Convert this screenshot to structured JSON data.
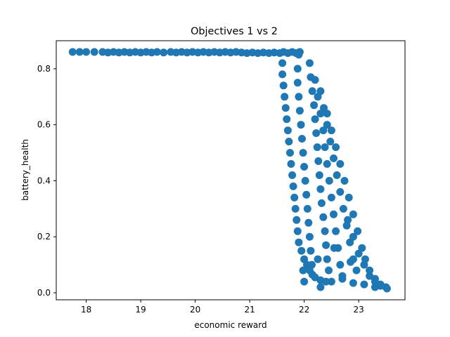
{
  "chart_data": {
    "type": "scatter",
    "title": "Objectives 1 vs 2",
    "xlabel": "economic reward",
    "ylabel": "battery_health",
    "xlim": [
      17.45,
      23.85
    ],
    "ylim": [
      -0.025,
      0.9
    ],
    "xticks": [
      18,
      19,
      20,
      21,
      22,
      23
    ],
    "yticks": [
      0.0,
      0.2,
      0.4,
      0.6,
      0.8
    ],
    "grid": false,
    "legend": "none",
    "marker_color": "#1f77b4",
    "series": [
      {
        "points": [
          [
            17.75,
            0.86
          ],
          [
            17.88,
            0.86
          ],
          [
            18.0,
            0.86
          ],
          [
            18.15,
            0.86
          ],
          [
            18.3,
            0.86
          ],
          [
            18.4,
            0.858
          ],
          [
            18.5,
            0.86
          ],
          [
            18.6,
            0.858
          ],
          [
            18.7,
            0.86
          ],
          [
            18.8,
            0.858
          ],
          [
            18.9,
            0.86
          ],
          [
            19.0,
            0.858
          ],
          [
            19.1,
            0.86
          ],
          [
            19.2,
            0.858
          ],
          [
            19.3,
            0.86
          ],
          [
            19.42,
            0.858
          ],
          [
            19.55,
            0.86
          ],
          [
            19.65,
            0.858
          ],
          [
            19.75,
            0.86
          ],
          [
            19.85,
            0.858
          ],
          [
            19.95,
            0.86
          ],
          [
            20.05,
            0.858
          ],
          [
            20.15,
            0.86
          ],
          [
            20.25,
            0.858
          ],
          [
            20.35,
            0.86
          ],
          [
            20.45,
            0.858
          ],
          [
            20.55,
            0.86
          ],
          [
            20.65,
            0.858
          ],
          [
            20.75,
            0.86
          ],
          [
            20.85,
            0.858
          ],
          [
            20.95,
            0.856
          ],
          [
            21.05,
            0.858
          ],
          [
            21.15,
            0.856
          ],
          [
            21.25,
            0.858
          ],
          [
            21.35,
            0.856
          ],
          [
            21.45,
            0.858
          ],
          [
            21.55,
            0.856
          ],
          [
            21.62,
            0.86
          ],
          [
            21.7,
            0.856
          ],
          [
            21.78,
            0.86
          ],
          [
            21.85,
            0.856
          ],
          [
            21.92,
            0.86
          ],
          [
            21.6,
            0.82
          ],
          [
            21.6,
            0.78
          ],
          [
            21.62,
            0.74
          ],
          [
            21.64,
            0.7
          ],
          [
            21.66,
            0.66
          ],
          [
            21.68,
            0.62
          ],
          [
            21.7,
            0.58
          ],
          [
            21.72,
            0.54
          ],
          [
            21.74,
            0.5
          ],
          [
            21.76,
            0.46
          ],
          [
            21.78,
            0.42
          ],
          [
            21.8,
            0.38
          ],
          [
            21.82,
            0.34
          ],
          [
            21.84,
            0.3
          ],
          [
            21.86,
            0.26
          ],
          [
            21.88,
            0.22
          ],
          [
            21.9,
            0.18
          ],
          [
            21.95,
            0.15
          ],
          [
            22.0,
            0.12
          ],
          [
            22.05,
            0.1
          ],
          [
            22.1,
            0.08
          ],
          [
            22.15,
            0.065
          ],
          [
            22.2,
            0.055
          ],
          [
            22.3,
            0.045
          ],
          [
            22.4,
            0.04
          ],
          [
            22.5,
            0.04
          ],
          [
            21.9,
            0.85
          ],
          [
            21.88,
            0.8
          ],
          [
            21.88,
            0.75
          ],
          [
            21.9,
            0.7
          ],
          [
            21.92,
            0.65
          ],
          [
            21.94,
            0.6
          ],
          [
            21.96,
            0.55
          ],
          [
            21.98,
            0.5
          ],
          [
            22.0,
            0.45
          ],
          [
            22.02,
            0.4
          ],
          [
            22.04,
            0.35
          ],
          [
            22.06,
            0.3
          ],
          [
            22.08,
            0.25
          ],
          [
            22.1,
            0.2
          ],
          [
            22.12,
            0.15
          ],
          [
            22.14,
            0.1
          ],
          [
            22.1,
            0.82
          ],
          [
            22.12,
            0.77
          ],
          [
            22.15,
            0.72
          ],
          [
            22.18,
            0.67
          ],
          [
            22.2,
            0.62
          ],
          [
            22.22,
            0.57
          ],
          [
            22.24,
            0.52
          ],
          [
            22.26,
            0.47
          ],
          [
            22.28,
            0.42
          ],
          [
            22.3,
            0.37
          ],
          [
            22.32,
            0.32
          ],
          [
            22.35,
            0.27
          ],
          [
            22.38,
            0.22
          ],
          [
            22.4,
            0.17
          ],
          [
            22.42,
            0.12
          ],
          [
            22.45,
            0.08
          ],
          [
            22.2,
            0.76
          ],
          [
            22.25,
            0.7
          ],
          [
            22.3,
            0.64
          ],
          [
            22.35,
            0.58
          ],
          [
            22.38,
            0.52
          ],
          [
            22.42,
            0.46
          ],
          [
            22.46,
            0.4
          ],
          [
            22.5,
            0.34
          ],
          [
            22.54,
            0.28
          ],
          [
            22.58,
            0.22
          ],
          [
            22.62,
            0.16
          ],
          [
            22.66,
            0.1
          ],
          [
            22.7,
            0.06
          ],
          [
            22.3,
            0.72
          ],
          [
            22.36,
            0.66
          ],
          [
            22.42,
            0.6
          ],
          [
            22.48,
            0.54
          ],
          [
            22.54,
            0.48
          ],
          [
            22.6,
            0.42
          ],
          [
            22.66,
            0.36
          ],
          [
            22.72,
            0.3
          ],
          [
            22.78,
            0.24
          ],
          [
            22.84,
            0.18
          ],
          [
            22.9,
            0.12
          ],
          [
            22.96,
            0.08
          ],
          [
            22.42,
            0.64
          ],
          [
            22.5,
            0.58
          ],
          [
            22.58,
            0.52
          ],
          [
            22.66,
            0.46
          ],
          [
            22.74,
            0.4
          ],
          [
            22.82,
            0.34
          ],
          [
            22.9,
            0.28
          ],
          [
            22.98,
            0.22
          ],
          [
            23.06,
            0.16
          ],
          [
            23.12,
            0.12
          ],
          [
            23.2,
            0.08
          ],
          [
            23.3,
            0.05
          ],
          [
            23.4,
            0.03
          ],
          [
            23.5,
            0.02
          ],
          [
            22.8,
            0.26
          ],
          [
            22.9,
            0.2
          ],
          [
            23.0,
            0.14
          ],
          [
            23.1,
            0.1
          ],
          [
            23.2,
            0.06
          ],
          [
            23.3,
            0.04
          ],
          [
            23.4,
            0.025
          ],
          [
            23.52,
            0.015
          ],
          [
            22.7,
            0.05
          ],
          [
            22.9,
            0.035
          ],
          [
            23.1,
            0.03
          ],
          [
            23.3,
            0.02
          ],
          [
            22.3,
            0.02
          ],
          [
            22.0,
            0.04
          ],
          [
            21.98,
            0.08
          ],
          [
            22.25,
            0.12
          ],
          [
            22.55,
            0.16
          ],
          [
            22.85,
            0.11
          ]
        ]
      }
    ]
  }
}
